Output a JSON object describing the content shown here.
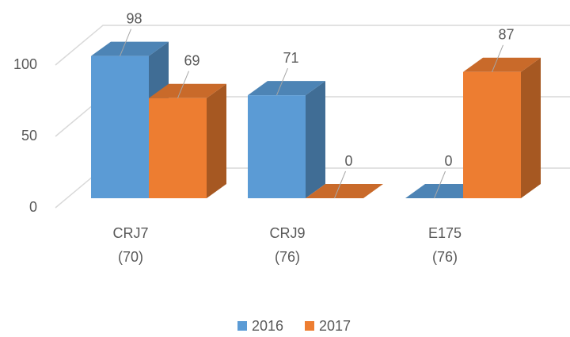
{
  "chart_data": {
    "type": "bar3d",
    "categories": [
      [
        "CRJ7",
        "(70)"
      ],
      [
        "CRJ9",
        "(76)"
      ],
      [
        "E175",
        "(76)"
      ]
    ],
    "series": [
      {
        "name": "2016",
        "color": "#5b9bd5",
        "values": [
          98,
          71,
          0
        ]
      },
      {
        "name": "2017",
        "color": "#ed7d31",
        "values": [
          69,
          0,
          87
        ]
      }
    ],
    "ylim": [
      0,
      100
    ],
    "yticks": [
      0,
      50,
      100
    ],
    "grid": true,
    "legend": "bottom"
  }
}
